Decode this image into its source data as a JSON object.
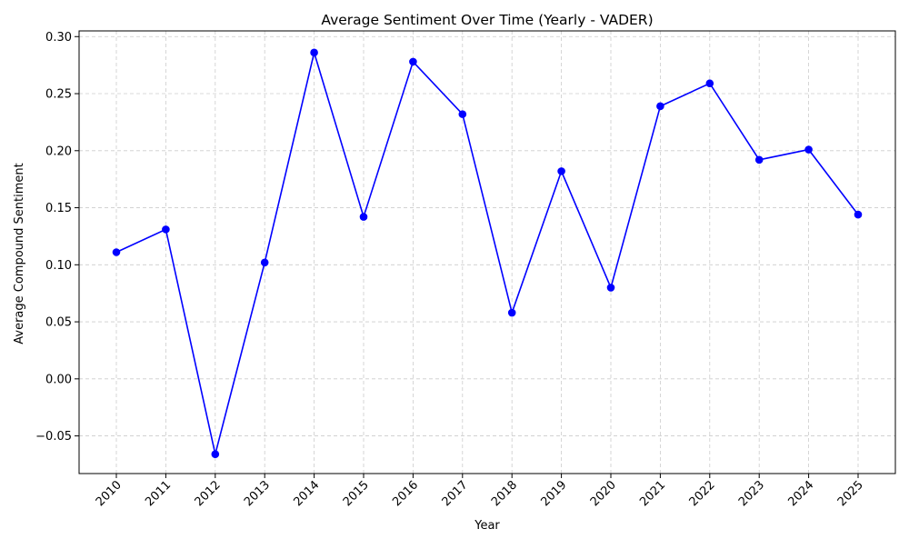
{
  "chart_data": {
    "type": "line",
    "title": "Average Sentiment Over Time (Yearly - VADER)",
    "xlabel": "Year",
    "ylabel": "Average Compound Sentiment",
    "categories": [
      "2010",
      "2011",
      "2012",
      "2013",
      "2014",
      "2015",
      "2016",
      "2017",
      "2018",
      "2019",
      "2020",
      "2021",
      "2022",
      "2023",
      "2024",
      "2025"
    ],
    "series": [
      {
        "values": [
          0.111,
          0.131,
          -0.066,
          0.102,
          0.286,
          0.142,
          0.278,
          0.232,
          0.058,
          0.182,
          0.08,
          0.239,
          0.259,
          0.192,
          0.201,
          0.144
        ]
      }
    ],
    "ylim": [
      -0.083,
      0.305
    ],
    "yticks": [
      -0.05,
      0.0,
      0.05,
      0.1,
      0.15,
      0.2,
      0.25,
      0.3
    ],
    "ytick_labels": [
      "−0.05",
      "0.00",
      "0.05",
      "0.10",
      "0.15",
      "0.20",
      "0.25",
      "0.30"
    ],
    "grid": true,
    "line_style": "dashed-grid",
    "colors": {
      "line": "#0000ff",
      "marker": "#0000ff",
      "grid": "#cccccc",
      "axis": "#000000"
    }
  }
}
